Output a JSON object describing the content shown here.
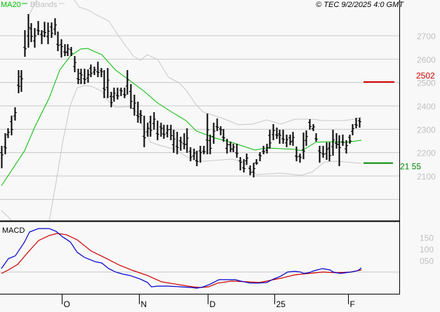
{
  "header": {
    "legend_ma20": "MA20",
    "legend_bbands": "BBands",
    "copyright": "© TEC 9/2/2025 4:0 GMT"
  },
  "colors": {
    "ma20": "#00bb00",
    "bbands": "#c8c8c8",
    "macd": "#0000cc",
    "signal": "#cc0000",
    "resistance": "#cc0000",
    "support": "#008800"
  },
  "markers": {
    "resistance_label": "2502",
    "support_label": "21 55"
  },
  "macd_panel": {
    "title": "MACD"
  },
  "chart_data": [
    {
      "type": "ohlc",
      "title": "Price",
      "y_ticks": [
        {
          "value": 2700,
          "label": "2700"
        },
        {
          "value": 2600,
          "label": "2600"
        },
        {
          "value": 2500,
          "label": "2500"
        },
        {
          "value": 2400,
          "label": "2400"
        },
        {
          "value": 2300,
          "label": "2300"
        },
        {
          "value": 2200,
          "label": "2200"
        },
        {
          "value": 2100,
          "label": "2100"
        }
      ],
      "grid_values": [
        2700,
        2600,
        2500,
        2400,
        2300,
        2200,
        2100,
        2000
      ],
      "ylim": [
        1908,
        2853
      ],
      "x_ticks": [
        {
          "bar": 18.2,
          "label": "O"
        },
        {
          "bar": 41.5,
          "label": "N"
        },
        {
          "bar": 62.3,
          "label": "D"
        },
        {
          "bar": 82.4,
          "label": "25"
        },
        {
          "bar": 104.6,
          "label": "F"
        }
      ],
      "bars_hl": [
        [
          2229,
          2133
        ],
        [
          2283,
          2193
        ],
        [
          2304,
          2262
        ],
        [
          2358,
          2274
        ],
        [
          2394,
          2337
        ],
        [
          2553,
          2454
        ],
        [
          2553,
          2460
        ],
        [
          2724,
          2610
        ],
        [
          2793,
          2649
        ],
        [
          2754,
          2673
        ],
        [
          2733,
          2649
        ],
        [
          2763,
          2703
        ],
        [
          2724,
          2664
        ],
        [
          2760,
          2694
        ],
        [
          2757,
          2664
        ],
        [
          2757,
          2691
        ],
        [
          2775,
          2703
        ],
        [
          2718,
          2634
        ],
        [
          2685,
          2607
        ],
        [
          2664,
          2613
        ],
        [
          2664,
          2613
        ],
        [
          2652,
          2613
        ],
        [
          2613,
          2544
        ],
        [
          2559,
          2493
        ],
        [
          2559,
          2493
        ],
        [
          2559,
          2493
        ],
        [
          2556,
          2499
        ],
        [
          2577,
          2523
        ],
        [
          2568,
          2532
        ],
        [
          2589,
          2523
        ],
        [
          2562,
          2523
        ],
        [
          2553,
          2433
        ],
        [
          2562,
          2433
        ],
        [
          2460,
          2394
        ],
        [
          2478,
          2418
        ],
        [
          2478,
          2427
        ],
        [
          2478,
          2442
        ],
        [
          2478,
          2433
        ],
        [
          2553,
          2448
        ],
        [
          2493,
          2388
        ],
        [
          2448,
          2358
        ],
        [
          2418,
          2328
        ],
        [
          2382,
          2325
        ],
        [
          2358,
          2223
        ],
        [
          2328,
          2268
        ],
        [
          2358,
          2268
        ],
        [
          2373,
          2298
        ],
        [
          2337,
          2253
        ],
        [
          2328,
          2268
        ],
        [
          2319,
          2259
        ],
        [
          2319,
          2265
        ],
        [
          2319,
          2253
        ],
        [
          2298,
          2199
        ],
        [
          2289,
          2193
        ],
        [
          2268,
          2208
        ],
        [
          2283,
          2214
        ],
        [
          2304,
          2199
        ],
        [
          2223,
          2163
        ],
        [
          2217,
          2169
        ],
        [
          2208,
          2142
        ],
        [
          2229,
          2157
        ],
        [
          2229,
          2193
        ],
        [
          2367,
          2193
        ],
        [
          2277,
          2193
        ],
        [
          2328,
          2238
        ],
        [
          2346,
          2292
        ],
        [
          2313,
          2274
        ],
        [
          2301,
          2247
        ],
        [
          2259,
          2196
        ],
        [
          2247,
          2202
        ],
        [
          2238,
          2202
        ],
        [
          2238,
          2178
        ],
        [
          2181,
          2124
        ],
        [
          2172,
          2115
        ],
        [
          2196,
          2148
        ],
        [
          2145,
          2103
        ],
        [
          2157,
          2094
        ],
        [
          2172,
          2148
        ],
        [
          2202,
          2163
        ],
        [
          2229,
          2193
        ],
        [
          2238,
          2196
        ],
        [
          2298,
          2217
        ],
        [
          2322,
          2253
        ],
        [
          2307,
          2259
        ],
        [
          2298,
          2238
        ],
        [
          2298,
          2238
        ],
        [
          2277,
          2223
        ],
        [
          2277,
          2232
        ],
        [
          2289,
          2229
        ],
        [
          2226,
          2163
        ],
        [
          2196,
          2157
        ],
        [
          2286,
          2172
        ],
        [
          2295,
          2229
        ],
        [
          2343,
          2298
        ],
        [
          2322,
          2292
        ],
        [
          2283,
          2247
        ],
        [
          2229,
          2157
        ],
        [
          2229,
          2178
        ],
        [
          2244,
          2169
        ],
        [
          2244,
          2163
        ],
        [
          2298,
          2187
        ],
        [
          2283,
          2217
        ],
        [
          2274,
          2142
        ],
        [
          2277,
          2229
        ],
        [
          2253,
          2196
        ],
        [
          2277,
          2238
        ],
        [
          2322,
          2274
        ],
        [
          2349,
          2304
        ],
        [
          2349,
          2307
        ]
      ],
      "ma20": [
        [
          0,
          2058
        ],
        [
          7,
          2208
        ],
        [
          10.2,
          2313
        ],
        [
          14.4,
          2433
        ],
        [
          17.6,
          2553
        ],
        [
          20.8,
          2613
        ],
        [
          23.9,
          2643
        ],
        [
          26,
          2646
        ],
        [
          30.3,
          2619
        ],
        [
          34.5,
          2553
        ],
        [
          38.8,
          2508
        ],
        [
          43,
          2463
        ],
        [
          47.2,
          2412
        ],
        [
          51.5,
          2373
        ],
        [
          55.7,
          2337
        ],
        [
          58.9,
          2292
        ],
        [
          64.6,
          2262
        ],
        [
          69.5,
          2244
        ],
        [
          76.5,
          2211
        ],
        [
          80,
          2220
        ],
        [
          88.6,
          2214
        ],
        [
          90.7,
          2208
        ],
        [
          94.9,
          2244
        ],
        [
          98.5,
          2247
        ],
        [
          104,
          2244
        ],
        [
          108.7,
          2253
        ]
      ],
      "bb_upper": [
        [
          8.5,
          2793
        ],
        [
          11.2,
          2868
        ],
        [
          17,
          2950
        ],
        [
          23.5,
          2823
        ],
        [
          26.5,
          2808
        ],
        [
          28.2,
          2793
        ],
        [
          32.4,
          2763
        ],
        [
          34.5,
          2718
        ],
        [
          36.7,
          2673
        ],
        [
          39.8,
          2613
        ],
        [
          42,
          2595
        ],
        [
          44,
          2619
        ],
        [
          47.2,
          2598
        ],
        [
          50.4,
          2523
        ],
        [
          53.6,
          2499
        ],
        [
          55.7,
          2469
        ],
        [
          58.9,
          2403
        ],
        [
          61,
          2373
        ],
        [
          63.1,
          2364
        ],
        [
          67.4,
          2343
        ],
        [
          71.6,
          2319
        ],
        [
          75.8,
          2322
        ],
        [
          80,
          2340
        ],
        [
          84.3,
          2322
        ],
        [
          88.6,
          2343
        ],
        [
          93.9,
          2343
        ],
        [
          97,
          2337
        ],
        [
          103.4,
          2337
        ],
        [
          106.6,
          2343
        ],
        [
          108.7,
          2352
        ]
      ],
      "bb_lower": [
        [
          0,
          1953
        ],
        [
          2.8,
          1914
        ],
        [
          8,
          1800
        ],
        [
          14.4,
          1905
        ],
        [
          16.5,
          2073
        ],
        [
          18.6,
          2253
        ],
        [
          20.8,
          2403
        ],
        [
          22.9,
          2478
        ],
        [
          25,
          2487
        ],
        [
          27.1,
          2484
        ],
        [
          30.3,
          2463
        ],
        [
          32.4,
          2418
        ],
        [
          34.5,
          2394
        ],
        [
          38.8,
          2397
        ],
        [
          40.9,
          2373
        ],
        [
          43,
          2298
        ],
        [
          45.1,
          2244
        ],
        [
          48.3,
          2229
        ],
        [
          52.5,
          2214
        ],
        [
          54.7,
          2193
        ],
        [
          57.8,
          2169
        ],
        [
          61,
          2163
        ],
        [
          69.5,
          2172
        ],
        [
          72.7,
          2163
        ],
        [
          76.9,
          2106
        ],
        [
          84.3,
          2112
        ],
        [
          90.7,
          2103
        ],
        [
          93.9,
          2118
        ],
        [
          96,
          2142
        ],
        [
          97.5,
          2160
        ],
        [
          101.3,
          2163
        ],
        [
          108.7,
          2154
        ]
      ],
      "resistance": 2502,
      "support": 2155
    },
    {
      "type": "line",
      "title": "MACD",
      "y_ticks": [
        {
          "value": 1.5,
          "label": "150"
        },
        {
          "value": 1.0,
          "label": "100"
        },
        {
          "value": 0.5,
          "label": "050"
        }
      ],
      "zero_line": 0,
      "macd": [
        [
          0,
          0.15
        ],
        [
          2.1,
          0.58
        ],
        [
          4.2,
          0.7
        ],
        [
          7,
          1.3
        ],
        [
          8.5,
          1.73
        ],
        [
          11.2,
          1.88
        ],
        [
          14.4,
          1.88
        ],
        [
          16.5,
          1.76
        ],
        [
          18.2,
          1.55
        ],
        [
          20.8,
          1.3
        ],
        [
          22.9,
          0.85
        ],
        [
          25,
          0.64
        ],
        [
          28.2,
          0.45
        ],
        [
          30.3,
          0.39
        ],
        [
          32.4,
          0.15
        ],
        [
          34.5,
          0
        ],
        [
          36.7,
          -0.09
        ],
        [
          38.8,
          -0.15
        ],
        [
          41.9,
          -0.3
        ],
        [
          44.1,
          -0.45
        ],
        [
          45.3,
          -0.64
        ],
        [
          47.2,
          -0.61
        ],
        [
          50.4,
          -0.61
        ],
        [
          54.2,
          -0.64
        ],
        [
          57.8,
          -0.67
        ],
        [
          58.9,
          -0.7
        ],
        [
          61,
          -0.64
        ],
        [
          63.1,
          -0.52
        ],
        [
          65.7,
          -0.33
        ],
        [
          70.6,
          -0.33
        ],
        [
          72.2,
          -0.39
        ],
        [
          75.2,
          -0.48
        ],
        [
          77.5,
          -0.48
        ],
        [
          80.1,
          -0.45
        ],
        [
          82.2,
          -0.3
        ],
        [
          84.3,
          -0.18
        ],
        [
          86.4,
          0
        ],
        [
          88.6,
          0.03
        ],
        [
          90.3,
          0
        ],
        [
          91.3,
          -0.06
        ],
        [
          92.8,
          -0.03
        ],
        [
          94.5,
          0.06
        ],
        [
          97,
          0.15
        ],
        [
          99.2,
          0.09
        ],
        [
          100.2,
          0
        ],
        [
          102.3,
          -0.06
        ],
        [
          105.5,
          0
        ],
        [
          107.6,
          0.06
        ],
        [
          108.7,
          0.18
        ]
      ],
      "signal": [
        [
          0,
          -0.06
        ],
        [
          2.1,
          0.09
        ],
        [
          4.9,
          0.33
        ],
        [
          8,
          0.85
        ],
        [
          11.2,
          1.36
        ],
        [
          14.4,
          1.58
        ],
        [
          16.9,
          1.67
        ],
        [
          19.7,
          1.61
        ],
        [
          22.9,
          1.39
        ],
        [
          27.1,
          0.91
        ],
        [
          31.4,
          0.61
        ],
        [
          35.6,
          0.3
        ],
        [
          39.8,
          0.06
        ],
        [
          44.1,
          -0.15
        ],
        [
          48.3,
          -0.42
        ],
        [
          52.5,
          -0.52
        ],
        [
          57.8,
          -0.64
        ],
        [
          60,
          -0.67
        ],
        [
          62.5,
          -0.64
        ],
        [
          65.3,
          -0.48
        ],
        [
          69.5,
          -0.39
        ],
        [
          73.7,
          -0.42
        ],
        [
          78,
          -0.45
        ],
        [
          81.1,
          -0.36
        ],
        [
          84.3,
          -0.27
        ],
        [
          88.6,
          -0.12
        ],
        [
          92.8,
          -0.06
        ],
        [
          97,
          0
        ],
        [
          101.3,
          -0.03
        ],
        [
          105.5,
          0
        ],
        [
          108.7,
          0.09
        ]
      ]
    }
  ]
}
